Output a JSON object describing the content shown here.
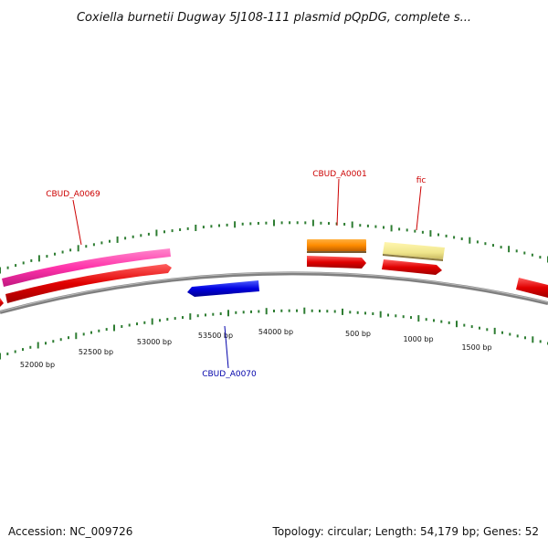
{
  "title": "Coxiella burnetii Dugway 5J108-111 plasmid pQpDG, complete s...",
  "footer": {
    "accession": "Accession: NC_009726",
    "summary": "Topology: circular; Length: 54,179 bp; Genes: 52"
  },
  "map": {
    "topology": "circular",
    "length_bp": 54179,
    "gene_count": 52,
    "tick_labels": [
      "52000 bp",
      "52500 bp",
      "53000 bp",
      "53500 bp",
      "54000 bp",
      "500 bp",
      "1000 bp",
      "1500 bp"
    ]
  },
  "colors": {
    "forward_cds": "#e00000",
    "reverse_cds": "#0000e0",
    "pink_feature": "#ff33aa",
    "orange_feature": "#ff8c00",
    "yellow_feature": "#f0e68c",
    "backbone": "#808080",
    "tick": "#2e7d32",
    "label_red": "#cc0000",
    "label_blue": "#0000aa"
  },
  "labels": {
    "cbud_a0069": "CBUD_A0069",
    "cbud_a0001": "CBUD_A0001",
    "fic": "fic",
    "cbud_a0070": "CBUD_A0070"
  }
}
